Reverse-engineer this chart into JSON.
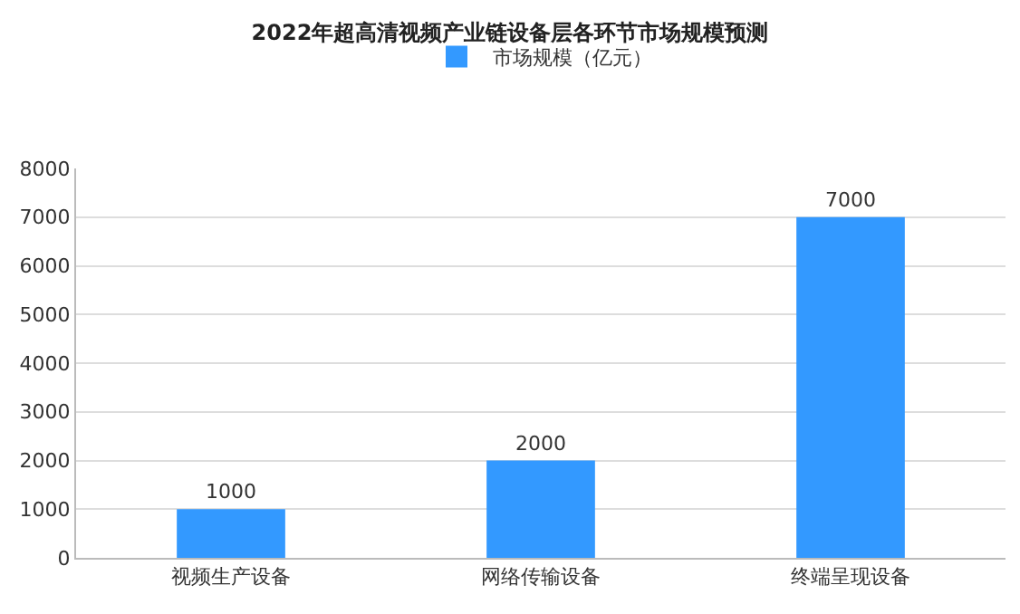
{
  "chart_data": {
    "type": "bar",
    "title": "2022年超高清视频产业链设备层各环节市场规模预测",
    "categories": [
      "视频生产设备",
      "网络传输设备",
      "终端呈现设备"
    ],
    "series": [
      {
        "name": "市场规模（亿元）",
        "color": "#3399ff",
        "values": [
          1000,
          2000,
          7000
        ]
      }
    ],
    "ylim": [
      0,
      8000
    ],
    "yticks": [
      0,
      1000,
      2000,
      3000,
      4000,
      5000,
      6000,
      7000,
      8000
    ],
    "grid": "y",
    "legend": "top",
    "data_labels": true
  }
}
